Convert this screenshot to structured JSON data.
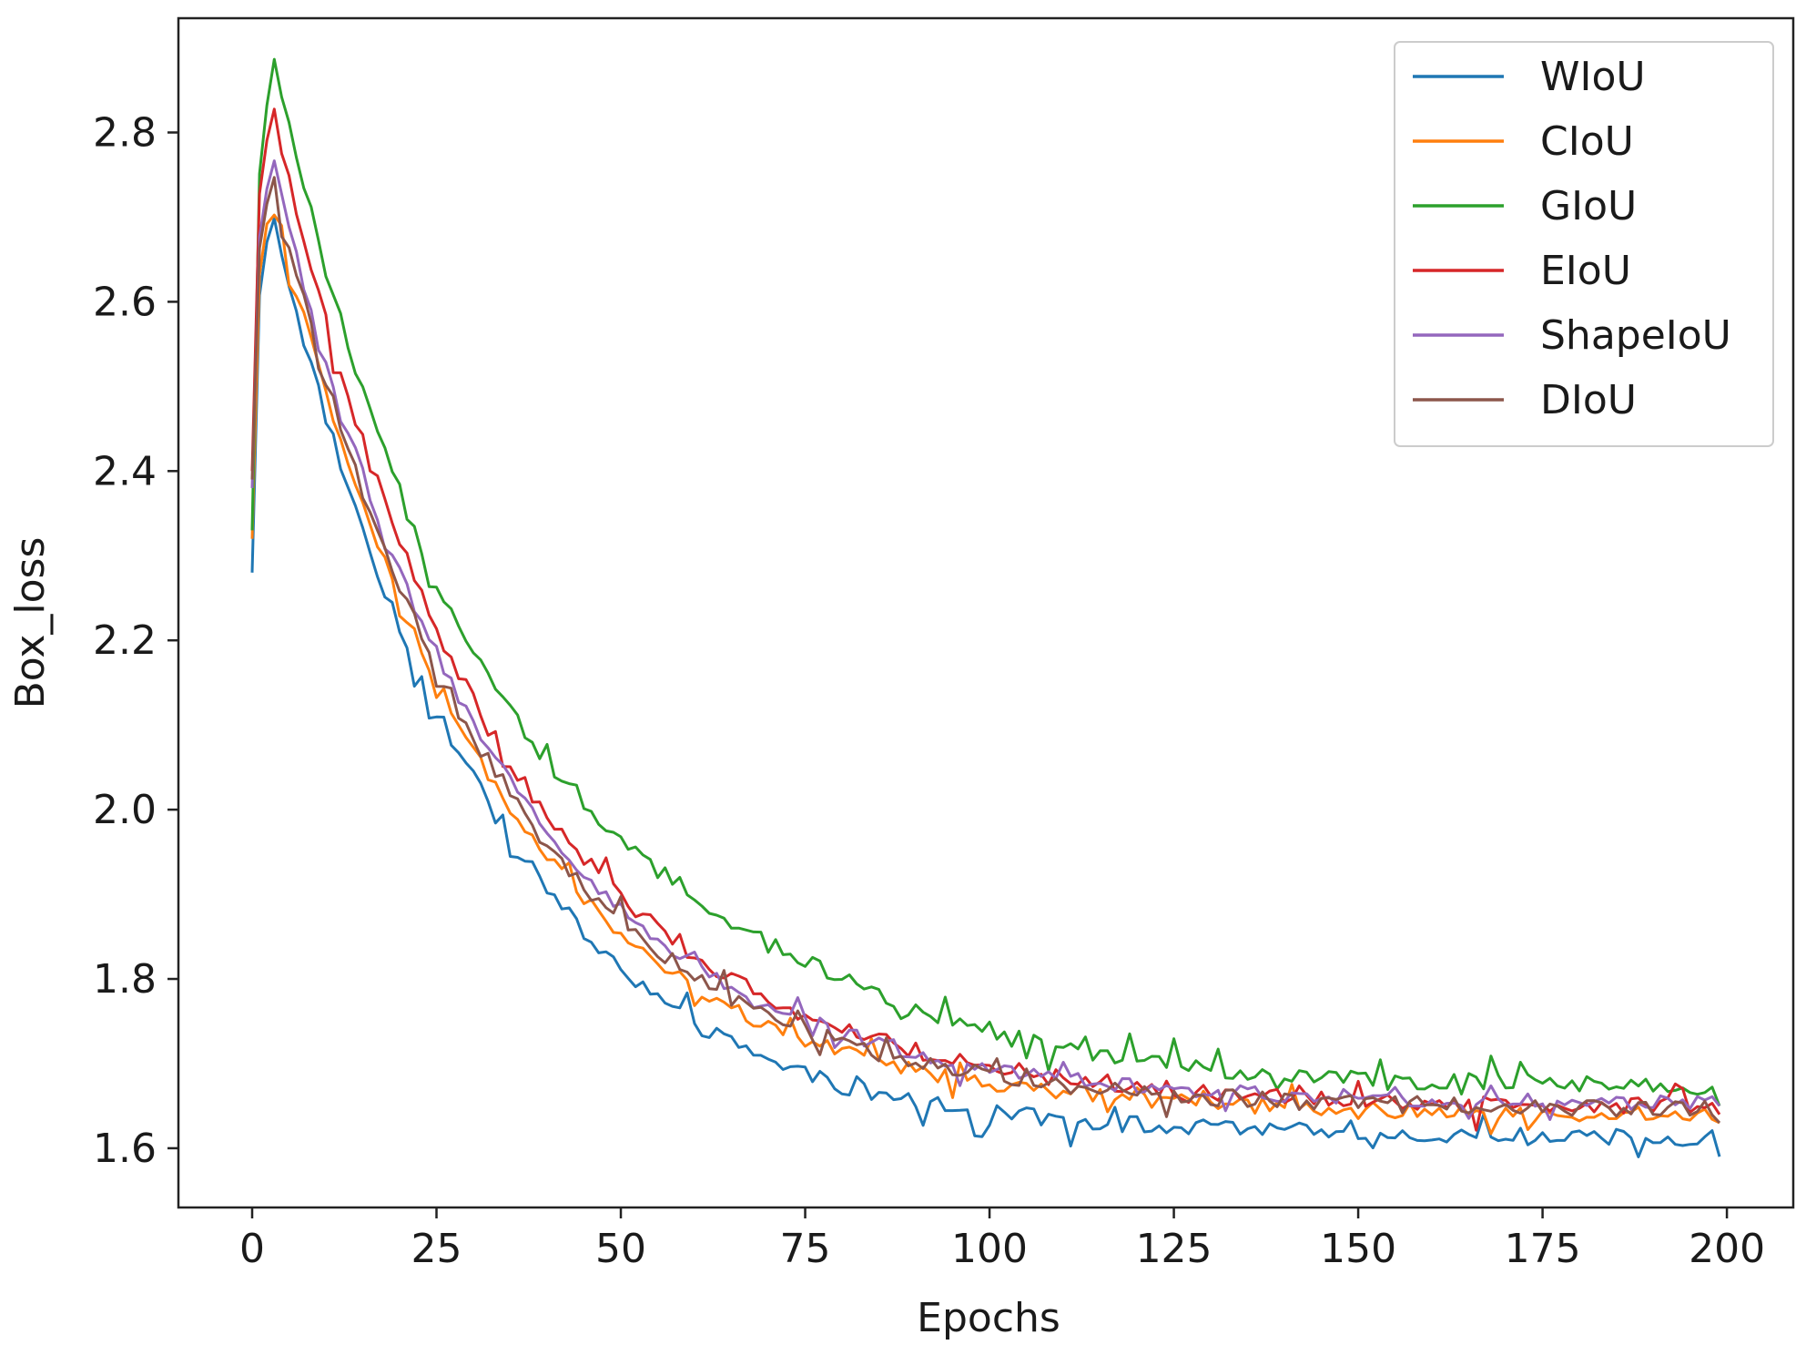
{
  "chart_data": {
    "type": "line",
    "title": "",
    "xlabel": "Epochs",
    "ylabel": "Box_loss",
    "xlim": [
      -10,
      209
    ],
    "ylim": [
      1.53,
      2.935
    ],
    "xticks": [
      0,
      25,
      50,
      75,
      100,
      125,
      150,
      175,
      200
    ],
    "xtick_labels": [
      "0",
      "25",
      "50",
      "75",
      "100",
      "125",
      "150",
      "175",
      "200"
    ],
    "yticks": [
      1.6,
      1.8,
      2.0,
      2.2,
      2.4,
      2.6,
      2.8
    ],
    "ytick_labels": [
      "1.6",
      "1.8",
      "2.0",
      "2.2",
      "2.4",
      "2.6",
      "2.8"
    ],
    "grid": false,
    "legend_position": "top-right",
    "series": [
      {
        "name": "WIoU",
        "color": "#1f77b4",
        "peak": 2.7,
        "start": 2.28,
        "end_level": 1.61,
        "final": 1.59,
        "mid_offset": -0.025,
        "jitter": 0.01
      },
      {
        "name": "CIoU",
        "color": "#ff7f0e",
        "peak": 2.72,
        "start": 2.32,
        "end_level": 1.638,
        "final": 1.63,
        "mid_offset": -0.01,
        "jitter": 0.009
      },
      {
        "name": "GIoU",
        "color": "#2ca02c",
        "peak": 2.87,
        "start": 2.33,
        "end_level": 1.672,
        "final": 1.65,
        "mid_offset": 0.045,
        "jitter": 0.011
      },
      {
        "name": "EIoU",
        "color": "#d62728",
        "peak": 2.82,
        "start": 2.4,
        "end_level": 1.648,
        "final": 1.64,
        "mid_offset": 0.005,
        "jitter": 0.01
      },
      {
        "name": "ShapeIoU",
        "color": "#9467bd",
        "peak": 2.76,
        "start": 2.38,
        "end_level": 1.652,
        "final": 1.65,
        "mid_offset": 0.0,
        "jitter": 0.009
      },
      {
        "name": "DIoU",
        "color": "#8c564b",
        "peak": 2.74,
        "start": 2.39,
        "end_level": 1.645,
        "final": 1.63,
        "mid_offset": -0.005,
        "jitter": 0.01
      }
    ],
    "epochs_range": [
      0,
      199
    ],
    "peak_epoch": 3
  }
}
